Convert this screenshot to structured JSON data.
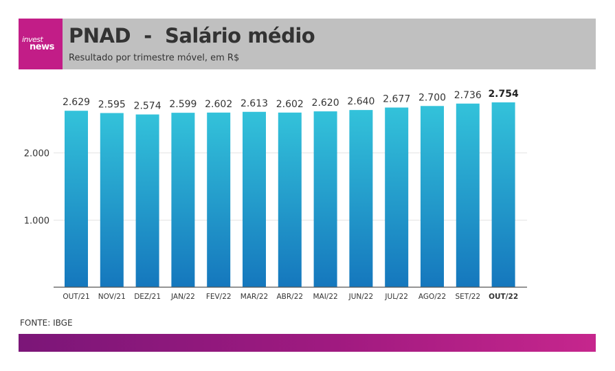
{
  "header": {
    "title": "PNAD  -  Salário médio",
    "subtitle": "Resultado por trimestre móvel, em R$",
    "logo_line1": "invest",
    "logo_line2": "news"
  },
  "source": "FONTE: IBGE",
  "watermark": "investnews",
  "colors": {
    "header_bg": "#c0c0c0",
    "logo_bg": "#c21d87",
    "bar_top": "#33c2da",
    "bar_bottom": "#1577bd",
    "footer_start": "#7b1678",
    "footer_end": "#c6268d"
  },
  "chart_data": {
    "type": "bar",
    "title": "PNAD  -  Salário médio",
    "subtitle": "Resultado por trimestre móvel, em R$",
    "categories": [
      "OUT/21",
      "NOV/21",
      "DEZ/21",
      "JAN/22",
      "FEV/22",
      "MAR/22",
      "ABR/22",
      "MAI/22",
      "JUN/22",
      "JUL/22",
      "AGO/22",
      "SET/22",
      "OUT/22"
    ],
    "values": [
      2629,
      2595,
      2574,
      2599,
      2602,
      2613,
      2602,
      2620,
      2640,
      2677,
      2700,
      2736,
      2754
    ],
    "value_labels": [
      "2.629",
      "2.595",
      "2.574",
      "2.599",
      "2.602",
      "2.613",
      "2.602",
      "2.620",
      "2.640",
      "2.677",
      "2.700",
      "2.736",
      "2.754"
    ],
    "highlight_index": 12,
    "yticks": [
      1000,
      2000
    ],
    "ytick_labels": [
      "1.000",
      "2.000"
    ],
    "ylim": [
      0,
      2754
    ],
    "grid": true,
    "legend": "none"
  }
}
